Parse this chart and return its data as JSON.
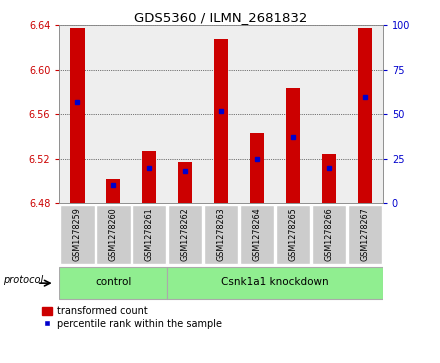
{
  "title": "GDS5360 / ILMN_2681832",
  "samples": [
    "GSM1278259",
    "GSM1278260",
    "GSM1278261",
    "GSM1278262",
    "GSM1278263",
    "GSM1278264",
    "GSM1278265",
    "GSM1278266",
    "GSM1278267"
  ],
  "transformed_counts": [
    6.638,
    6.502,
    6.527,
    6.517,
    6.628,
    6.543,
    6.584,
    6.524,
    6.638
  ],
  "bar_bottoms": [
    6.48,
    6.48,
    6.48,
    6.48,
    6.48,
    6.48,
    6.48,
    6.48,
    6.48
  ],
  "percentile_ranks": [
    57,
    10,
    20,
    18,
    52,
    25,
    37,
    20,
    60
  ],
  "ylim_left": [
    6.48,
    6.64
  ],
  "ylim_right": [
    0,
    100
  ],
  "yticks_left": [
    6.48,
    6.52,
    6.56,
    6.6,
    6.64
  ],
  "yticks_right": [
    0,
    25,
    50,
    75,
    100
  ],
  "bar_color": "#cc0000",
  "dot_color": "#0000cc",
  "control_samples": 3,
  "control_label": "control",
  "knockdown_label": "Csnk1a1 knockdown",
  "protocol_label": "protocol",
  "legend_bar_label": "transformed count",
  "legend_dot_label": "percentile rank within the sample",
  "background_color": "#ffffff",
  "plot_bg_color": "#eeeeee",
  "grid_color": "#000000",
  "control_bg": "#90ee90",
  "knockdown_bg": "#90ee90",
  "sample_box_color": "#cccccc",
  "tick_color_left": "#cc0000",
  "tick_color_right": "#0000cc",
  "bar_width": 0.4
}
